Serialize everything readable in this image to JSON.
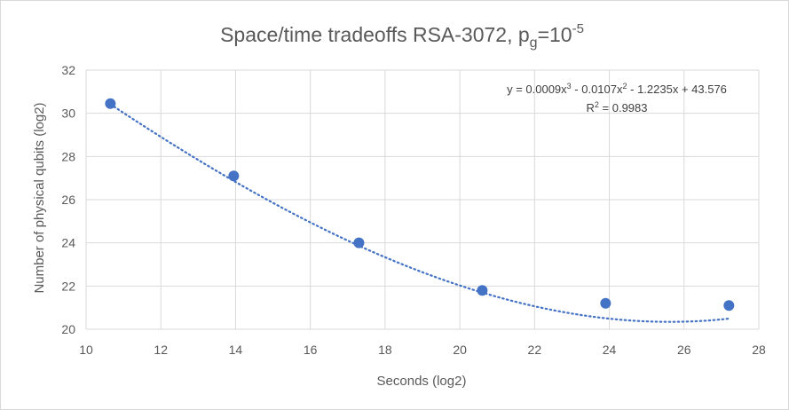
{
  "chart_data": {
    "type": "scatter",
    "title": {
      "main": "Space/time tradeoffs RSA-3072, p",
      "sub": "g",
      "rest": "=10",
      "sup": "-5"
    },
    "xlabel": "Seconds (log2)",
    "ylabel": "Number of physical qubits (log2)",
    "xlim": [
      10,
      28
    ],
    "ylim": [
      20,
      32
    ],
    "x_ticks": [
      "10",
      "12",
      "14",
      "16",
      "18",
      "20",
      "22",
      "24",
      "26",
      "28"
    ],
    "y_ticks": [
      "20",
      "22",
      "24",
      "26",
      "28",
      "30",
      "32"
    ],
    "grid": true,
    "series": [
      {
        "points": [
          {
            "x": 10.65,
            "y": 30.45
          },
          {
            "x": 13.95,
            "y": 27.1
          },
          {
            "x": 17.3,
            "y": 24.0
          },
          {
            "x": 20.6,
            "y": 21.8
          },
          {
            "x": 23.9,
            "y": 21.2
          },
          {
            "x": 27.2,
            "y": 21.1
          }
        ]
      }
    ],
    "trendline": {
      "type": "polynomial-3",
      "coefficients": [
        0.0009,
        -0.0107,
        -1.2235,
        43.576
      ],
      "equation": {
        "p1": "y = 0.0009x",
        "s1": "3",
        "p2": " - 0.0107x",
        "s2": "2",
        "p3": " - 1.2235x + 43.576"
      },
      "r2": {
        "p1": "R",
        "s1": "2",
        "p2": " = 0.9983"
      }
    },
    "colors": {
      "marker": "#4472c4",
      "trendline": "#4472c4",
      "grid": "#d9d9d9",
      "text": "#595959"
    }
  }
}
